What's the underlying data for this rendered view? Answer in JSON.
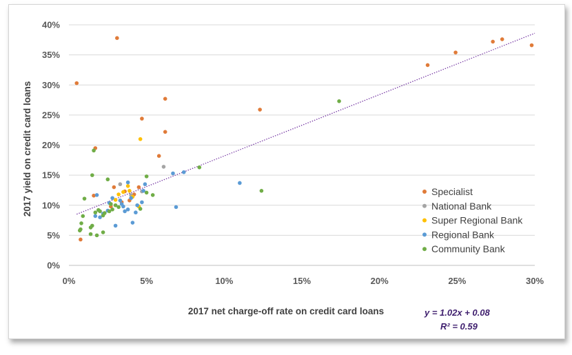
{
  "chart_data": {
    "type": "scatter",
    "xlabel": "2017 net charge-off rate on credit card loans",
    "ylabel": "2017 yield on credit card loans",
    "xlim": [
      0,
      0.3
    ],
    "ylim": [
      0,
      0.4
    ],
    "x_ticks": [
      {
        "value": 0,
        "label": "0%"
      },
      {
        "value": 0.05,
        "label": "5%"
      },
      {
        "value": 0.1,
        "label": "10%"
      },
      {
        "value": 0.15,
        "label": "15%"
      },
      {
        "value": 0.2,
        "label": "20%"
      },
      {
        "value": 0.25,
        "label": "25%"
      },
      {
        "value": 0.3,
        "label": "30%"
      }
    ],
    "y_ticks": [
      {
        "value": 0,
        "label": "0%"
      },
      {
        "value": 0.05,
        "label": "5%"
      },
      {
        "value": 0.1,
        "label": "10%"
      },
      {
        "value": 0.15,
        "label": "15%"
      },
      {
        "value": 0.2,
        "label": "20%"
      },
      {
        "value": 0.25,
        "label": "25%"
      },
      {
        "value": 0.3,
        "label": "30%"
      },
      {
        "value": 0.35,
        "label": "35%"
      },
      {
        "value": 0.4,
        "label": "40%"
      }
    ],
    "grid": "horizontal",
    "legend_position": "right",
    "series": [
      {
        "name": "Specialist",
        "color": "#e07b39",
        "points": [
          [
            0.005,
            0.303
          ],
          [
            0.031,
            0.378
          ],
          [
            0.0075,
            0.043
          ],
          [
            0.017,
            0.195
          ],
          [
            0.016,
            0.116
          ],
          [
            0.047,
            0.244
          ],
          [
            0.062,
            0.277
          ],
          [
            0.062,
            0.222
          ],
          [
            0.058,
            0.182
          ],
          [
            0.123,
            0.259
          ],
          [
            0.231,
            0.333
          ],
          [
            0.249,
            0.354
          ],
          [
            0.273,
            0.372
          ],
          [
            0.279,
            0.376
          ],
          [
            0.298,
            0.366
          ],
          [
            0.029,
            0.13
          ],
          [
            0.036,
            0.123
          ],
          [
            0.042,
            0.118
          ],
          [
            0.034,
            0.105
          ],
          [
            0.045,
            0.13
          ],
          [
            0.027,
            0.098
          ],
          [
            0.039,
            0.108
          ]
        ]
      },
      {
        "name": "National Bank",
        "color": "#a5a5a5",
        "points": [
          [
            0.061,
            0.164
          ],
          [
            0.033,
            0.135
          ],
          [
            0.04,
            0.117
          ],
          [
            0.027,
            0.102
          ],
          [
            0.047,
            0.123
          ]
        ]
      },
      {
        "name": "Super Regional Bank",
        "color": "#ffc000",
        "points": [
          [
            0.046,
            0.21
          ],
          [
            0.038,
            0.132
          ],
          [
            0.035,
            0.122
          ],
          [
            0.039,
            0.124
          ],
          [
            0.045,
            0.098
          ],
          [
            0.027,
            0.102
          ],
          [
            0.032,
            0.118
          ],
          [
            0.041,
            0.114
          ],
          [
            0.03,
            0.109
          ]
        ]
      },
      {
        "name": "Regional Bank",
        "color": "#5b9bd5",
        "points": [
          [
            0.11,
            0.137
          ],
          [
            0.074,
            0.155
          ],
          [
            0.067,
            0.153
          ],
          [
            0.069,
            0.097
          ],
          [
            0.03,
            0.066
          ],
          [
            0.041,
            0.071
          ],
          [
            0.035,
            0.098
          ],
          [
            0.038,
            0.138
          ],
          [
            0.048,
            0.124
          ],
          [
            0.049,
            0.135
          ],
          [
            0.017,
            0.082
          ],
          [
            0.02,
            0.08
          ],
          [
            0.043,
            0.088
          ],
          [
            0.047,
            0.105
          ],
          [
            0.025,
            0.091
          ],
          [
            0.034,
            0.102
          ],
          [
            0.038,
            0.093
          ],
          [
            0.04,
            0.112
          ],
          [
            0.022,
            0.086
          ],
          [
            0.028,
            0.112
          ],
          [
            0.018,
            0.117
          ],
          [
            0.033,
            0.108
          ],
          [
            0.036,
            0.09
          ],
          [
            0.044,
            0.1
          ],
          [
            0.026,
            0.104
          ]
        ]
      },
      {
        "name": "Community Bank",
        "color": "#70ad47",
        "points": [
          [
            0.174,
            0.273
          ],
          [
            0.084,
            0.163
          ],
          [
            0.124,
            0.124
          ],
          [
            0.016,
            0.191
          ],
          [
            0.015,
            0.15
          ],
          [
            0.025,
            0.143
          ],
          [
            0.05,
            0.148
          ],
          [
            0.054,
            0.117
          ],
          [
            0.01,
            0.111
          ],
          [
            0.008,
            0.07
          ],
          [
            0.0075,
            0.06
          ],
          [
            0.014,
            0.063
          ],
          [
            0.015,
            0.066
          ],
          [
            0.014,
            0.052
          ],
          [
            0.018,
            0.05
          ],
          [
            0.022,
            0.055
          ],
          [
            0.007,
            0.058
          ],
          [
            0.009,
            0.082
          ],
          [
            0.017,
            0.088
          ],
          [
            0.02,
            0.09
          ],
          [
            0.023,
            0.087
          ],
          [
            0.026,
            0.09
          ],
          [
            0.028,
            0.093
          ],
          [
            0.03,
            0.1
          ],
          [
            0.019,
            0.092
          ],
          [
            0.022,
            0.083
          ],
          [
            0.032,
            0.097
          ],
          [
            0.046,
            0.094
          ],
          [
            0.05,
            0.121
          ],
          [
            0.027,
            0.102
          ]
        ]
      }
    ],
    "trendline": {
      "type": "linear",
      "slope": 1.02,
      "intercept": 0.08,
      "x_range": [
        0.005,
        0.3
      ],
      "color": "#7030a0",
      "style": "dotted",
      "equation_label": "y = 1.02x + 0.08",
      "r2_label": "R² = 0.59"
    }
  }
}
